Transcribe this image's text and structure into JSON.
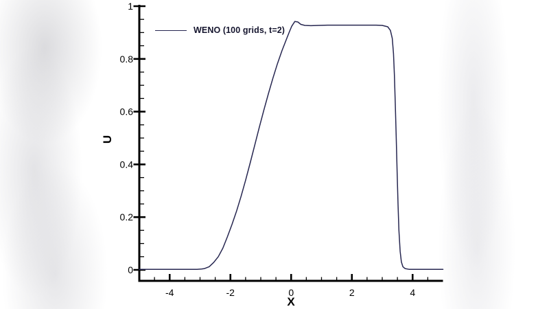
{
  "colors": {
    "curve": "#262650",
    "axis": "#000000",
    "tick_text": "#000000",
    "legend_text": "#15152e",
    "background": "#ffffff"
  },
  "chart_data": {
    "type": "line",
    "title": "",
    "xlabel": "X",
    "ylabel": "U",
    "xlim": [
      -5,
      5
    ],
    "ylim": [
      0,
      1
    ],
    "grid": false,
    "x_major_ticks": [
      -4,
      -2,
      0,
      2,
      4
    ],
    "x_tick_labels": [
      "-4",
      "-2",
      "0",
      "2",
      "4"
    ],
    "x_minor_step": 0.5,
    "y_major_ticks": [
      0,
      0.2,
      0.4,
      0.6,
      0.8,
      1
    ],
    "y_tick_labels": [
      "0",
      "0.2",
      "0.4",
      "0.6",
      "0.8",
      "1"
    ],
    "y_minor_step": 0.05,
    "legend": {
      "position": "top-left",
      "entries": [
        {
          "label": "WENO (100 grids, t=2)",
          "color": "#262650"
        }
      ]
    },
    "series": [
      {
        "name": "WENO (100 grids, t=2)",
        "color": "#262650",
        "points": [
          [
            -5.0,
            0.002
          ],
          [
            -4.6,
            0.002
          ],
          [
            -4.2,
            0.002
          ],
          [
            -3.8,
            0.002
          ],
          [
            -3.4,
            0.002
          ],
          [
            -3.1,
            0.002
          ],
          [
            -2.95,
            0.003
          ],
          [
            -2.85,
            0.005
          ],
          [
            -2.7,
            0.012
          ],
          [
            -2.55,
            0.028
          ],
          [
            -2.4,
            0.05
          ],
          [
            -2.25,
            0.082
          ],
          [
            -2.1,
            0.125
          ],
          [
            -1.95,
            0.172
          ],
          [
            -1.8,
            0.222
          ],
          [
            -1.65,
            0.278
          ],
          [
            -1.5,
            0.34
          ],
          [
            -1.35,
            0.405
          ],
          [
            -1.2,
            0.472
          ],
          [
            -1.05,
            0.54
          ],
          [
            -0.9,
            0.605
          ],
          [
            -0.75,
            0.668
          ],
          [
            -0.6,
            0.727
          ],
          [
            -0.45,
            0.782
          ],
          [
            -0.3,
            0.832
          ],
          [
            -0.15,
            0.876
          ],
          [
            -0.05,
            0.905
          ],
          [
            0.02,
            0.924
          ],
          [
            0.12,
            0.942
          ],
          [
            0.22,
            0.94
          ],
          [
            0.32,
            0.931
          ],
          [
            0.45,
            0.927
          ],
          [
            0.65,
            0.926
          ],
          [
            0.9,
            0.927
          ],
          [
            1.2,
            0.928
          ],
          [
            1.6,
            0.928
          ],
          [
            2.0,
            0.928
          ],
          [
            2.4,
            0.928
          ],
          [
            2.8,
            0.928
          ],
          [
            3.0,
            0.927
          ],
          [
            3.18,
            0.922
          ],
          [
            3.27,
            0.908
          ],
          [
            3.33,
            0.878
          ],
          [
            3.37,
            0.82
          ],
          [
            3.4,
            0.74
          ],
          [
            3.43,
            0.63
          ],
          [
            3.46,
            0.5
          ],
          [
            3.49,
            0.37
          ],
          [
            3.52,
            0.25
          ],
          [
            3.55,
            0.15
          ],
          [
            3.59,
            0.07
          ],
          [
            3.63,
            0.03
          ],
          [
            3.68,
            0.012
          ],
          [
            3.75,
            0.005
          ],
          [
            3.88,
            0.002
          ],
          [
            4.2,
            0.002
          ],
          [
            4.6,
            0.002
          ],
          [
            5.0,
            0.002
          ]
        ]
      }
    ]
  }
}
